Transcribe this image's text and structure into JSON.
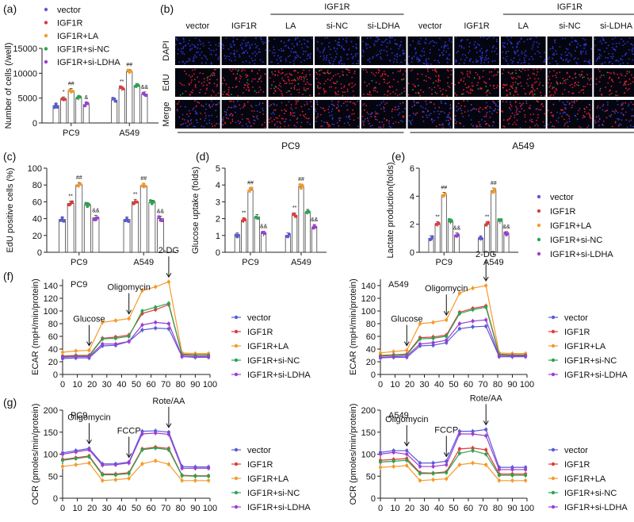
{
  "colors": {
    "vector": "#5b5bd6",
    "IGF1R": "#e23a3a",
    "IGF1R+LA": "#f59a2a",
    "IGF1R+si-NC": "#2aa44f",
    "IGF1R+si-LDHA": "#9b3fd1",
    "dapi": "#1c2a8a",
    "edu": "#b8141c"
  },
  "legend": [
    "vector",
    "IGF1R",
    "IGF1R+LA",
    "IGF1R+si-NC",
    "IGF1R+si-LDHA"
  ],
  "panel_b": {
    "label": "(b)",
    "group_header": "IGF1R",
    "columns": [
      "vector",
      "IGF1R",
      "LA",
      "si-NC",
      "si-LDHA"
    ],
    "rows": [
      "DAPI",
      "EdU",
      "Merge"
    ],
    "cell_lines": [
      "PC9",
      "A549"
    ]
  },
  "chart_data": [
    {
      "panel": "(a)",
      "type": "bar",
      "ylabel": "Number of cells (/well)",
      "ylim": [
        0,
        15000
      ],
      "yticks": [
        0,
        5000,
        10000,
        15000
      ],
      "categories": [
        "PC9",
        "A549"
      ],
      "series": [
        {
          "name": "vector",
          "values": [
            3500,
            4600
          ]
        },
        {
          "name": "IGF1R",
          "values": [
            4800,
            6900
          ]
        },
        {
          "name": "IGF1R+LA",
          "values": [
            6500,
            10300
          ]
        },
        {
          "name": "IGF1R+si-NC",
          "values": [
            5000,
            7500
          ]
        },
        {
          "name": "IGF1R+si-LDHA",
          "values": [
            3700,
            5800
          ]
        }
      ],
      "annotations": [
        [
          "",
          "*",
          "##",
          "",
          "&"
        ],
        [
          "",
          "**",
          "##",
          "",
          "&&"
        ]
      ]
    },
    {
      "panel": "(c)",
      "type": "bar",
      "ylabel": "EdU positive cells (%)",
      "ylim": [
        0,
        100
      ],
      "yticks": [
        0,
        20,
        40,
        60,
        80,
        100
      ],
      "categories": [
        "PC9",
        "A549"
      ],
      "series": [
        {
          "name": "vector",
          "values": [
            39,
            39
          ]
        },
        {
          "name": "IGF1R",
          "values": [
            58,
            60
          ]
        },
        {
          "name": "IGF1R+LA",
          "values": [
            80,
            79
          ]
        },
        {
          "name": "IGF1R+si-NC",
          "values": [
            56,
            59
          ]
        },
        {
          "name": "IGF1R+si-LDHA",
          "values": [
            41,
            40
          ]
        }
      ],
      "annotations": [
        [
          "",
          "**",
          "##",
          "",
          "&&"
        ],
        [
          "",
          "**",
          "##",
          "",
          "&&"
        ]
      ]
    },
    {
      "panel": "(d)",
      "type": "bar",
      "ylabel": "Glucose uptake (folds)",
      "ylim": [
        0,
        5
      ],
      "yticks": [
        0,
        1,
        2,
        3,
        4,
        5
      ],
      "categories": [
        "PC9",
        "A549"
      ],
      "series": [
        {
          "name": "vector",
          "values": [
            1.0,
            1.0
          ]
        },
        {
          "name": "IGF1R",
          "values": [
            1.9,
            2.2
          ]
        },
        {
          "name": "IGF1R+LA",
          "values": [
            3.7,
            3.9
          ]
        },
        {
          "name": "IGF1R+si-NC",
          "values": [
            2.1,
            2.4
          ]
        },
        {
          "name": "IGF1R+si-LDHA",
          "values": [
            1.1,
            1.5
          ]
        }
      ],
      "annotations": [
        [
          "",
          "**",
          "##",
          "",
          "&&"
        ],
        [
          "",
          "**",
          "##",
          "",
          "&&"
        ]
      ]
    },
    {
      "panel": "(e)",
      "type": "bar",
      "ylabel": "Lactate production(folds)",
      "ylim": [
        0,
        6
      ],
      "yticks": [
        0,
        2,
        4,
        6
      ],
      "categories": [
        "PC9",
        "A549"
      ],
      "series": [
        {
          "name": "vector",
          "values": [
            1.0,
            1.0
          ]
        },
        {
          "name": "IGF1R",
          "values": [
            2.0,
            2.0
          ]
        },
        {
          "name": "IGF1R+LA",
          "values": [
            4.1,
            4.4
          ]
        },
        {
          "name": "IGF1R+si-NC",
          "values": [
            2.2,
            2.2
          ]
        },
        {
          "name": "IGF1R+si-LDHA",
          "values": [
            1.2,
            1.3
          ]
        }
      ],
      "annotations": [
        [
          "",
          "**",
          "##",
          "",
          "&&"
        ],
        [
          "",
          "**",
          "##",
          "",
          "&&"
        ]
      ]
    },
    {
      "panel": "(f)",
      "type": "line",
      "title": "PC9",
      "ylabel": "ECAR (mpH/min/protein)",
      "ylim": [
        0,
        150
      ],
      "yticks": [
        0,
        20,
        40,
        60,
        80,
        100,
        120,
        140
      ],
      "xlim": [
        0,
        100
      ],
      "xticks": [
        0,
        10,
        20,
        30,
        40,
        50,
        60,
        70,
        80,
        90,
        100
      ],
      "x": [
        0,
        9,
        18,
        27,
        36,
        45,
        54,
        63,
        72,
        81,
        90,
        99
      ],
      "series": [
        {
          "name": "vector",
          "values": [
            25,
            26,
            26,
            45,
            46,
            52,
            70,
            73,
            72,
            28,
            27,
            27
          ]
        },
        {
          "name": "IGF1R",
          "values": [
            29,
            30,
            30,
            57,
            59,
            62,
            96,
            102,
            110,
            32,
            31,
            31
          ]
        },
        {
          "name": "IGF1R+LA",
          "values": [
            35,
            37,
            38,
            82,
            85,
            88,
            132,
            138,
            146,
            34,
            33,
            33
          ]
        },
        {
          "name": "IGF1R+si-NC",
          "values": [
            28,
            29,
            29,
            56,
            57,
            60,
            100,
            106,
            112,
            31,
            30,
            30
          ]
        },
        {
          "name": "IGF1R+si-LDHA",
          "values": [
            27,
            28,
            28,
            48,
            48,
            52,
            78,
            82,
            80,
            29,
            28,
            28
          ]
        }
      ],
      "annotations": [
        "Glucose",
        "Oligomycin",
        "2-DG"
      ],
      "annotation_x": [
        18,
        45,
        72
      ]
    },
    {
      "panel": "",
      "type": "line",
      "title": "A549",
      "ylabel": "ECAR (mpH/min/protein)",
      "ylim": [
        0,
        150
      ],
      "yticks": [
        0,
        20,
        40,
        60,
        80,
        100,
        120,
        140
      ],
      "xlim": [
        0,
        100
      ],
      "xticks": [
        0,
        10,
        20,
        30,
        40,
        50,
        60,
        70,
        80,
        90,
        100
      ],
      "x": [
        0,
        9,
        18,
        27,
        36,
        45,
        54,
        63,
        72,
        81,
        90,
        99
      ],
      "series": [
        {
          "name": "vector",
          "values": [
            26,
            27,
            27,
            45,
            46,
            50,
            72,
            75,
            76,
            28,
            28,
            28
          ]
        },
        {
          "name": "IGF1R",
          "values": [
            30,
            31,
            32,
            58,
            59,
            62,
            98,
            104,
            108,
            32,
            31,
            31
          ]
        },
        {
          "name": "IGF1R+LA",
          "values": [
            34,
            36,
            38,
            80,
            82,
            86,
            128,
            136,
            140,
            34,
            33,
            33
          ]
        },
        {
          "name": "IGF1R+si-NC",
          "values": [
            29,
            30,
            31,
            56,
            57,
            60,
            96,
            102,
            106,
            31,
            30,
            30
          ]
        },
        {
          "name": "IGF1R+si-LDHA",
          "values": [
            27,
            28,
            29,
            48,
            50,
            54,
            80,
            84,
            86,
            29,
            29,
            29
          ]
        }
      ],
      "annotations": [
        "Glucose",
        "Oligomycin",
        "2-DG"
      ],
      "annotation_x": [
        18,
        45,
        72
      ]
    },
    {
      "panel": "(g)",
      "type": "line",
      "title": "PC9",
      "ylabel": "OCR (pmoles/min/protein)",
      "ylim": [
        0,
        200
      ],
      "yticks": [
        0,
        50,
        100,
        150,
        200
      ],
      "xlim": [
        0,
        100
      ],
      "xticks": [
        0,
        10,
        20,
        30,
        40,
        50,
        60,
        70,
        80,
        90,
        100
      ],
      "x": [
        0,
        9,
        18,
        27,
        36,
        45,
        54,
        63,
        72,
        81,
        90,
        99
      ],
      "series": [
        {
          "name": "vector",
          "values": [
            103,
            108,
            113,
            78,
            78,
            82,
            152,
            153,
            150,
            72,
            71,
            71
          ]
        },
        {
          "name": "IGF1R",
          "values": [
            88,
            92,
            96,
            55,
            55,
            58,
            112,
            116,
            113,
            52,
            51,
            51
          ]
        },
        {
          "name": "IGF1R+LA",
          "values": [
            72,
            76,
            80,
            40,
            42,
            45,
            78,
            85,
            77,
            40,
            40,
            40
          ]
        },
        {
          "name": "IGF1R+si-NC",
          "values": [
            86,
            90,
            94,
            53,
            53,
            56,
            110,
            114,
            110,
            51,
            50,
            50
          ]
        },
        {
          "name": "IGF1R+si-LDHA",
          "values": [
            100,
            105,
            110,
            75,
            76,
            80,
            146,
            148,
            145,
            68,
            68,
            68
          ]
        }
      ],
      "annotations": [
        "Oligomycin",
        "FCCP",
        "Rote/AA"
      ],
      "annotation_x": [
        18,
        45,
        72
      ]
    },
    {
      "panel": "",
      "type": "line",
      "title": "A549",
      "ylabel": "OCR (pmoles/min/protein)",
      "ylim": [
        0,
        200
      ],
      "yticks": [
        0,
        50,
        100,
        150,
        200
      ],
      "xlim": [
        0,
        100
      ],
      "xticks": [
        0,
        10,
        20,
        30,
        40,
        50,
        60,
        70,
        80,
        90,
        100
      ],
      "x": [
        0,
        9,
        18,
        27,
        36,
        45,
        54,
        63,
        72,
        81,
        90,
        99
      ],
      "series": [
        {
          "name": "vector",
          "values": [
            104,
            108,
            108,
            80,
            80,
            84,
            152,
            152,
            156,
            70,
            70,
            70
          ]
        },
        {
          "name": "IGF1R",
          "values": [
            86,
            88,
            90,
            58,
            57,
            60,
            112,
            114,
            110,
            55,
            55,
            55
          ]
        },
        {
          "name": "IGF1R+LA",
          "values": [
            70,
            72,
            74,
            40,
            42,
            44,
            76,
            80,
            76,
            40,
            40,
            40
          ]
        },
        {
          "name": "IGF1R+si-NC",
          "values": [
            82,
            84,
            86,
            56,
            56,
            58,
            102,
            108,
            100,
            52,
            52,
            52
          ]
        },
        {
          "name": "IGF1R+si-LDHA",
          "values": [
            100,
            104,
            100,
            72,
            72,
            76,
            146,
            146,
            142,
            65,
            65,
            65
          ]
        }
      ],
      "annotations": [
        "Oligomycin",
        "FCCP",
        "Rote/AA"
      ],
      "annotation_x": [
        18,
        45,
        72
      ]
    }
  ]
}
